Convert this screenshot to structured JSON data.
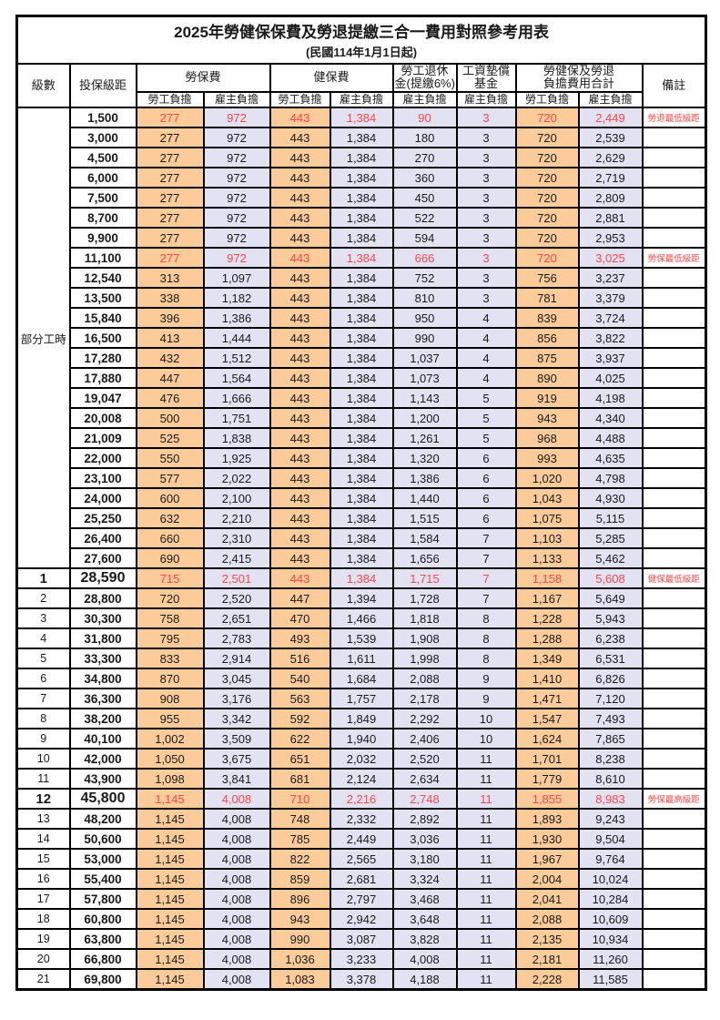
{
  "title": "2025年勞健保保費及勞退提繳三合一費用對照參考用表",
  "subtitle": "(民國114年1月1日起)",
  "colors": {
    "employee_bg": "#FBCB99",
    "employer_bg": "#E3E2F3",
    "highlight_red": "#FF4646",
    "grid_line": "#000000"
  },
  "header": {
    "level": "級數",
    "bracket": "投保級距",
    "labor_insurance": "勞保費",
    "health_insurance": "健保費",
    "pension_line1": "勞工退休",
    "pension_line2": "金(提繳6%)",
    "wage_arrears_line1": "工資墊償",
    "wage_arrears_line2": "基金",
    "total_line1": "勞健保及勞退",
    "total_line2": "負擔費用合計",
    "remark": "備註",
    "employee": "勞工負擔",
    "employer": "雇主負擔"
  },
  "value_column_bg": [
    "emp",
    "er",
    "emp",
    "er",
    "er",
    "er",
    "emp",
    "er"
  ],
  "part_time": {
    "label": "部分工時",
    "rows": [
      {
        "bracket": "1,500",
        "values": [
          "277",
          "972",
          "443",
          "1,384",
          "90",
          "3",
          "720",
          "2,449"
        ],
        "remark": "勞退最低級距",
        "red": true
      },
      {
        "bracket": "3,000",
        "values": [
          "277",
          "972",
          "443",
          "1,384",
          "180",
          "3",
          "720",
          "2,539"
        ]
      },
      {
        "bracket": "4,500",
        "values": [
          "277",
          "972",
          "443",
          "1,384",
          "270",
          "3",
          "720",
          "2,629"
        ]
      },
      {
        "bracket": "6,000",
        "values": [
          "277",
          "972",
          "443",
          "1,384",
          "360",
          "3",
          "720",
          "2,719"
        ]
      },
      {
        "bracket": "7,500",
        "values": [
          "277",
          "972",
          "443",
          "1,384",
          "450",
          "3",
          "720",
          "2,809"
        ]
      },
      {
        "bracket": "8,700",
        "values": [
          "277",
          "972",
          "443",
          "1,384",
          "522",
          "3",
          "720",
          "2,881"
        ]
      },
      {
        "bracket": "9,900",
        "values": [
          "277",
          "972",
          "443",
          "1,384",
          "594",
          "3",
          "720",
          "2,953"
        ]
      },
      {
        "bracket": "11,100",
        "values": [
          "277",
          "972",
          "443",
          "1,384",
          "666",
          "3",
          "720",
          "3,025"
        ],
        "remark": "勞保最低級距",
        "red": true
      },
      {
        "bracket": "12,540",
        "values": [
          "313",
          "1,097",
          "443",
          "1,384",
          "752",
          "3",
          "756",
          "3,237"
        ]
      },
      {
        "bracket": "13,500",
        "values": [
          "338",
          "1,182",
          "443",
          "1,384",
          "810",
          "3",
          "781",
          "3,379"
        ]
      },
      {
        "bracket": "15,840",
        "values": [
          "396",
          "1,386",
          "443",
          "1,384",
          "950",
          "4",
          "839",
          "3,724"
        ]
      },
      {
        "bracket": "16,500",
        "values": [
          "413",
          "1,444",
          "443",
          "1,384",
          "990",
          "4",
          "856",
          "3,822"
        ]
      },
      {
        "bracket": "17,280",
        "values": [
          "432",
          "1,512",
          "443",
          "1,384",
          "1,037",
          "4",
          "875",
          "3,937"
        ]
      },
      {
        "bracket": "17,880",
        "values": [
          "447",
          "1,564",
          "443",
          "1,384",
          "1,073",
          "4",
          "890",
          "4,025"
        ]
      },
      {
        "bracket": "19,047",
        "values": [
          "476",
          "1,666",
          "443",
          "1,384",
          "1,143",
          "5",
          "919",
          "4,198"
        ]
      },
      {
        "bracket": "20,008",
        "values": [
          "500",
          "1,751",
          "443",
          "1,384",
          "1,200",
          "5",
          "943",
          "4,340"
        ]
      },
      {
        "bracket": "21,009",
        "values": [
          "525",
          "1,838",
          "443",
          "1,384",
          "1,261",
          "5",
          "968",
          "4,488"
        ]
      },
      {
        "bracket": "22,000",
        "values": [
          "550",
          "1,925",
          "443",
          "1,384",
          "1,320",
          "6",
          "993",
          "4,635"
        ]
      },
      {
        "bracket": "23,100",
        "values": [
          "577",
          "2,022",
          "443",
          "1,384",
          "1,386",
          "6",
          "1,020",
          "4,798"
        ]
      },
      {
        "bracket": "24,000",
        "values": [
          "600",
          "2,100",
          "443",
          "1,384",
          "1,440",
          "6",
          "1,043",
          "4,930"
        ]
      },
      {
        "bracket": "25,250",
        "values": [
          "632",
          "2,210",
          "443",
          "1,384",
          "1,515",
          "6",
          "1,075",
          "5,115"
        ]
      },
      {
        "bracket": "26,400",
        "values": [
          "660",
          "2,310",
          "443",
          "1,384",
          "1,584",
          "7",
          "1,103",
          "5,285"
        ]
      },
      {
        "bracket": "27,600",
        "values": [
          "690",
          "2,415",
          "443",
          "1,384",
          "1,656",
          "7",
          "1,133",
          "5,462"
        ]
      }
    ]
  },
  "levels": [
    {
      "level": "1",
      "bracket": "28,590",
      "values": [
        "715",
        "2,501",
        "443",
        "1,384",
        "1,715",
        "7",
        "1,158",
        "5,608"
      ],
      "remark": "健保最低級距",
      "red": true,
      "big": true
    },
    {
      "level": "2",
      "bracket": "28,800",
      "values": [
        "720",
        "2,520",
        "447",
        "1,394",
        "1,728",
        "7",
        "1,167",
        "5,649"
      ]
    },
    {
      "level": "3",
      "bracket": "30,300",
      "values": [
        "758",
        "2,651",
        "470",
        "1,466",
        "1,818",
        "8",
        "1,228",
        "5,943"
      ]
    },
    {
      "level": "4",
      "bracket": "31,800",
      "values": [
        "795",
        "2,783",
        "493",
        "1,539",
        "1,908",
        "8",
        "1,288",
        "6,238"
      ]
    },
    {
      "level": "5",
      "bracket": "33,300",
      "values": [
        "833",
        "2,914",
        "516",
        "1,611",
        "1,998",
        "8",
        "1,349",
        "6,531"
      ]
    },
    {
      "level": "6",
      "bracket": "34,800",
      "values": [
        "870",
        "3,045",
        "540",
        "1,684",
        "2,088",
        "9",
        "1,410",
        "6,826"
      ]
    },
    {
      "level": "7",
      "bracket": "36,300",
      "values": [
        "908",
        "3,176",
        "563",
        "1,757",
        "2,178",
        "9",
        "1,471",
        "7,120"
      ]
    },
    {
      "level": "8",
      "bracket": "38,200",
      "values": [
        "955",
        "3,342",
        "592",
        "1,849",
        "2,292",
        "10",
        "1,547",
        "7,493"
      ]
    },
    {
      "level": "9",
      "bracket": "40,100",
      "values": [
        "1,002",
        "3,509",
        "622",
        "1,940",
        "2,406",
        "10",
        "1,624",
        "7,865"
      ]
    },
    {
      "level": "10",
      "bracket": "42,000",
      "values": [
        "1,050",
        "3,675",
        "651",
        "2,032",
        "2,520",
        "11",
        "1,701",
        "8,238"
      ]
    },
    {
      "level": "11",
      "bracket": "43,900",
      "values": [
        "1,098",
        "3,841",
        "681",
        "2,124",
        "2,634",
        "11",
        "1,779",
        "8,610"
      ]
    },
    {
      "level": "12",
      "bracket": "45,800",
      "values": [
        "1,145",
        "4,008",
        "710",
        "2,216",
        "2,748",
        "11",
        "1,855",
        "8,983"
      ],
      "remark": "勞保最高級距",
      "red": true,
      "big": true
    },
    {
      "level": "13",
      "bracket": "48,200",
      "values": [
        "1,145",
        "4,008",
        "748",
        "2,332",
        "2,892",
        "11",
        "1,893",
        "9,243"
      ]
    },
    {
      "level": "14",
      "bracket": "50,600",
      "values": [
        "1,145",
        "4,008",
        "785",
        "2,449",
        "3,036",
        "11",
        "1,930",
        "9,504"
      ]
    },
    {
      "level": "15",
      "bracket": "53,000",
      "values": [
        "1,145",
        "4,008",
        "822",
        "2,565",
        "3,180",
        "11",
        "1,967",
        "9,764"
      ]
    },
    {
      "level": "16",
      "bracket": "55,400",
      "values": [
        "1,145",
        "4,008",
        "859",
        "2,681",
        "3,324",
        "11",
        "2,004",
        "10,024"
      ]
    },
    {
      "level": "17",
      "bracket": "57,800",
      "values": [
        "1,145",
        "4,008",
        "896",
        "2,797",
        "3,468",
        "11",
        "2,041",
        "10,284"
      ]
    },
    {
      "level": "18",
      "bracket": "60,800",
      "values": [
        "1,145",
        "4,008",
        "943",
        "2,942",
        "3,648",
        "11",
        "2,088",
        "10,609"
      ]
    },
    {
      "level": "19",
      "bracket": "63,800",
      "values": [
        "1,145",
        "4,008",
        "990",
        "3,087",
        "3,828",
        "11",
        "2,135",
        "10,934"
      ]
    },
    {
      "level": "20",
      "bracket": "66,800",
      "values": [
        "1,145",
        "4,008",
        "1,036",
        "3,233",
        "4,008",
        "11",
        "2,181",
        "11,260"
      ]
    },
    {
      "level": "21",
      "bracket": "69,800",
      "values": [
        "1,145",
        "4,008",
        "1,083",
        "3,378",
        "4,188",
        "11",
        "2,228",
        "11,585"
      ]
    }
  ]
}
